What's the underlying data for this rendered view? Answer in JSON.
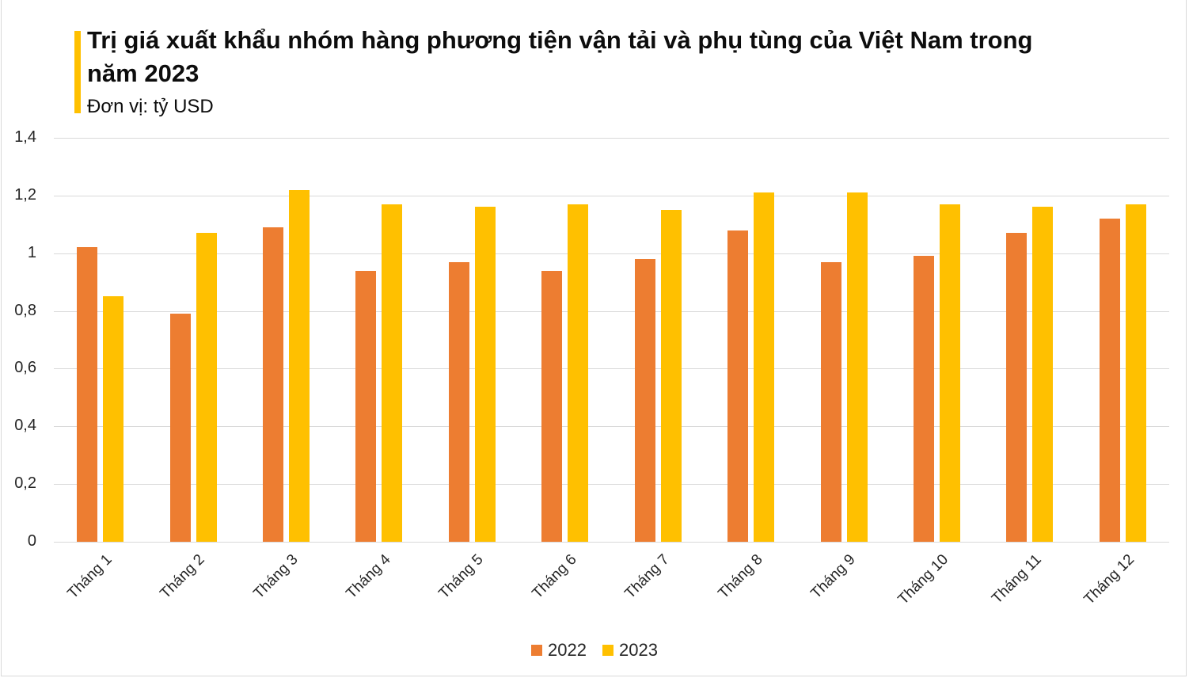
{
  "header": {
    "title": "Trị giá xuất khẩu nhóm hàng phương tiện vận tải và phụ tùng của Việt Nam trong năm 2023",
    "subtitle": "Đơn vị: tỷ USD"
  },
  "colors": {
    "accent": "#FFC000",
    "series_2022": "#ED7D31",
    "series_2023": "#FFC000"
  },
  "legend": [
    {
      "label": "2022",
      "color": "#ED7D31"
    },
    {
      "label": "2023",
      "color": "#FFC000"
    }
  ],
  "chart_data": {
    "type": "bar",
    "title": "Trị giá xuất khẩu nhóm hàng phương tiện vận tải và phụ tùng của Việt Nam trong năm 2023",
    "subtitle": "Đơn vị: tỷ USD",
    "xlabel": "",
    "ylabel": "",
    "categories": [
      "Tháng 1",
      "Tháng 2",
      "Tháng 3",
      "Tháng 4",
      "Tháng 5",
      "Tháng 6",
      "Tháng 7",
      "Tháng 8",
      "Tháng 9",
      "Tháng 10",
      "Tháng 11",
      "Tháng 12"
    ],
    "series": [
      {
        "name": "2022",
        "color": "#ED7D31",
        "values": [
          1.02,
          0.79,
          1.09,
          0.94,
          0.97,
          0.94,
          0.98,
          1.08,
          0.97,
          0.99,
          1.07,
          1.12
        ]
      },
      {
        "name": "2023",
        "color": "#FFC000",
        "values": [
          0.85,
          1.07,
          1.22,
          1.17,
          1.16,
          1.17,
          1.15,
          1.21,
          1.21,
          1.17,
          1.16,
          1.17
        ]
      }
    ],
    "yticks": [
      "0",
      "0,2",
      "0,4",
      "0,6",
      "0,8",
      "1",
      "1,2",
      "1,4"
    ],
    "ylim": [
      0,
      1.4
    ],
    "grid": true,
    "legend_position": "bottom"
  }
}
